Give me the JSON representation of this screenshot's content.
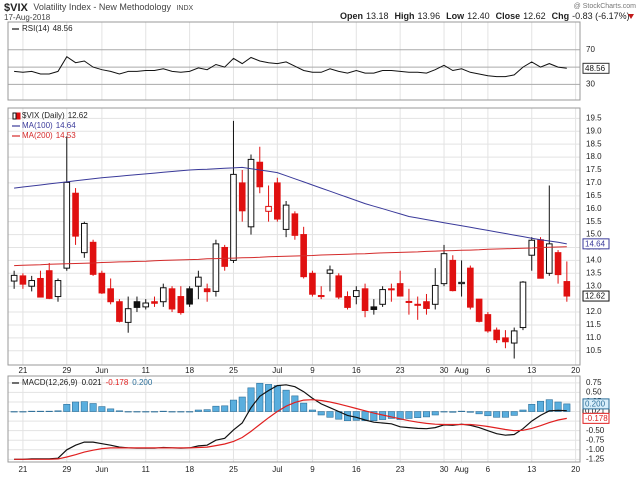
{
  "header": {
    "symbol": "$VIX",
    "name": "Volatility Index - New Methodology",
    "exchange": "INDX",
    "date": "17-Aug-2018",
    "source": "@ StockCharts.com",
    "quote": [
      {
        "label": "Open",
        "value": "13.18"
      },
      {
        "label": "High",
        "value": "13.96"
      },
      {
        "label": "Low",
        "value": "12.40"
      },
      {
        "label": "Close",
        "value": "12.62"
      },
      {
        "label": "Chg",
        "value": "-0.83 (-6.17%)"
      }
    ]
  },
  "x_axis": {
    "xlim": [
      -0.7,
      64.5
    ],
    "xticks": [
      {
        "value": 1,
        "label": "21"
      },
      {
        "value": 6,
        "label": "29"
      },
      {
        "value": 10,
        "label": "Jun"
      },
      {
        "value": 15,
        "label": "11"
      },
      {
        "value": 20,
        "label": "18"
      },
      {
        "value": 25,
        "label": "25"
      },
      {
        "value": 30,
        "label": "Jul"
      },
      {
        "value": 34,
        "label": "9"
      },
      {
        "value": 39,
        "label": "16"
      },
      {
        "value": 44,
        "label": "23"
      },
      {
        "value": 49,
        "label": "30"
      },
      {
        "value": 51,
        "label": "Aug"
      },
      {
        "value": 54,
        "label": "6"
      },
      {
        "value": 59,
        "label": "13"
      },
      {
        "value": 64,
        "label": "20"
      }
    ],
    "grid": true
  },
  "chart_data": [
    {
      "type": "line",
      "ylim": [
        12,
        102
      ],
      "yticks": [
        30,
        50,
        70
      ],
      "grid": true,
      "series": [
        {
          "name": "RSI(14)",
          "color": "#111111",
          "last_value_box": true,
          "values": [
            45,
            44,
            45,
            42,
            42,
            45,
            62,
            55,
            57,
            50,
            47,
            45,
            42,
            45,
            45,
            46,
            46,
            48,
            45,
            44,
            45,
            49,
            47,
            53,
            50,
            60,
            54,
            61,
            57,
            55,
            54,
            56,
            51,
            46,
            44,
            44,
            48,
            45,
            43,
            46,
            43,
            43,
            46,
            46,
            45,
            44,
            44,
            43,
            47,
            52,
            46,
            48,
            44,
            42,
            40,
            39,
            39,
            41,
            50,
            56,
            50,
            54,
            50,
            48.56
          ]
        }
      ]
    },
    {
      "type": "candlestick",
      "name": "$VIX (Daily)",
      "up_color": "#111111",
      "down_color": "#e01010",
      "ylim": [
        9.95,
        19.9
      ],
      "yticks": [
        10.5,
        {
          "value": 11,
          "label": "11.0"
        },
        11.5,
        {
          "value": 12,
          "label": "12.0"
        },
        12.5,
        {
          "value": 13,
          "label": "13.0"
        },
        13.5,
        {
          "value": 14,
          "label": "14.0"
        },
        14.5,
        {
          "value": 15,
          "label": "15.0"
        },
        15.5,
        {
          "value": 16,
          "label": "16.0"
        },
        16.5,
        {
          "value": 17,
          "label": "17.0"
        },
        17.5,
        {
          "value": 18,
          "label": "18.0"
        },
        18.5,
        {
          "value": 19,
          "label": "19.0"
        },
        19.5
      ],
      "grid": true,
      "last_value_box": true,
      "open": [
        13.2,
        13.4,
        13.0,
        13.3,
        13.6,
        12.6,
        13.7,
        16.6,
        14.3,
        14.7,
        13.5,
        12.9,
        12.4,
        11.6,
        12.4,
        12.2,
        12.4,
        12.4,
        12.9,
        12.6,
        12.9,
        13.0,
        12.9,
        12.8,
        14.5,
        14.0,
        17.0,
        15.3,
        17.8,
        15.9,
        17.0,
        15.2,
        15.8,
        15.0,
        13.5,
        12.6,
        13.5,
        13.4,
        12.6,
        12.6,
        12.9,
        12.2,
        12.3,
        12.9,
        13.1,
        12.4,
        12.3,
        12.4,
        12.3,
        13.1,
        14.0,
        13.1,
        13.7,
        12.5,
        11.9,
        11.3,
        11.0,
        10.8,
        11.4,
        14.2,
        14.8,
        13.5,
        14.3,
        13.18
      ],
      "high": [
        13.6,
        13.5,
        13.4,
        13.6,
        13.9,
        13.3,
        18.8,
        16.8,
        15.5,
        14.8,
        13.6,
        13.3,
        12.5,
        12.6,
        12.6,
        12.5,
        12.6,
        13.1,
        13.0,
        13.0,
        13.0,
        13.6,
        13.1,
        14.8,
        14.6,
        19.4,
        17.5,
        18.1,
        18.4,
        16.9,
        17.2,
        16.3,
        15.9,
        15.3,
        13.6,
        13.0,
        13.8,
        13.5,
        12.8,
        13.0,
        13.1,
        12.5,
        13.0,
        13.1,
        13.6,
        12.9,
        12.6,
        12.7,
        13.7,
        14.6,
        14.2,
        14.0,
        13.8,
        12.5,
        12.0,
        11.4,
        11.3,
        11.4,
        13.2,
        14.9,
        14.9,
        16.9,
        14.4,
        13.96
      ],
      "low": [
        12.9,
        12.9,
        12.8,
        12.6,
        12.5,
        12.4,
        13.6,
        14.6,
        14.1,
        13.4,
        12.7,
        12.3,
        11.6,
        11.2,
        12.0,
        12.1,
        12.2,
        12.2,
        12.0,
        11.9,
        12.2,
        12.5,
        12.4,
        12.6,
        13.6,
        13.9,
        15.5,
        15.0,
        16.6,
        15.5,
        15.5,
        14.9,
        14.8,
        13.3,
        12.6,
        12.5,
        12.8,
        12.5,
        12.1,
        12.3,
        11.8,
        11.9,
        12.2,
        12.4,
        12.6,
        11.9,
        11.7,
        11.9,
        12.1,
        13.0,
        12.8,
        12.6,
        12.1,
        11.6,
        11.2,
        10.8,
        10.6,
        10.2,
        11.3,
        13.6,
        13.3,
        13.4,
        13.1,
        12.4
      ],
      "close": [
        13.42,
        13.08,
        13.22,
        12.58,
        12.53,
        13.22,
        17.02,
        14.94,
        15.43,
        13.46,
        12.74,
        12.4,
        11.64,
        12.13,
        12.18,
        12.35,
        12.34,
        12.94,
        12.12,
        11.98,
        12.31,
        13.35,
        12.79,
        14.64,
        13.77,
        17.33,
        15.92,
        17.91,
        16.85,
        16.09,
        15.6,
        16.14,
        14.97,
        13.37,
        12.69,
        12.64,
        13.63,
        12.58,
        12.18,
        12.83,
        12.06,
        12.1,
        12.87,
        12.86,
        12.62,
        12.41,
        12.29,
        12.14,
        13.03,
        14.26,
        12.83,
        13.15,
        12.19,
        11.64,
        11.27,
        10.93,
        10.85,
        11.27,
        13.16,
        14.78,
        13.31,
        14.64,
        13.45,
        12.62
      ],
      "series": [
        {
          "name": "MA(100)",
          "color": "#3a3a9a",
          "last_value_box": true,
          "values": [
            16.8,
            16.84,
            16.88,
            16.92,
            16.96,
            17.0,
            17.04,
            17.08,
            17.12,
            17.16,
            17.2,
            17.23,
            17.26,
            17.29,
            17.32,
            17.35,
            17.38,
            17.41,
            17.44,
            17.47,
            17.5,
            17.52,
            17.53,
            17.55,
            17.57,
            17.58,
            17.6,
            17.55,
            17.5,
            17.45,
            17.4,
            17.28,
            17.16,
            17.04,
            16.92,
            16.8,
            16.68,
            16.56,
            16.44,
            16.32,
            16.2,
            16.1,
            16.0,
            15.9,
            15.8,
            15.7,
            15.64,
            15.58,
            15.52,
            15.46,
            15.4,
            15.34,
            15.28,
            15.22,
            15.16,
            15.1,
            15.04,
            14.98,
            14.92,
            14.86,
            14.8,
            14.75,
            14.7,
            14.64
          ]
        },
        {
          "name": "MA(200)",
          "color": "#d42a2a",
          "last_value_box": false,
          "values": [
            13.8,
            13.81,
            13.82,
            13.83,
            13.85,
            13.86,
            13.87,
            13.88,
            13.89,
            13.9,
            13.92,
            13.93,
            13.94,
            13.95,
            13.96,
            13.97,
            13.99,
            14.0,
            14.01,
            14.02,
            14.03,
            14.04,
            14.06,
            14.07,
            14.08,
            14.09,
            14.1,
            14.11,
            14.12,
            14.14,
            14.15,
            14.16,
            14.17,
            14.18,
            14.19,
            14.21,
            14.22,
            14.23,
            14.24,
            14.25,
            14.26,
            14.28,
            14.29,
            14.3,
            14.31,
            14.32,
            14.33,
            14.35,
            14.36,
            14.37,
            14.38,
            14.39,
            14.4,
            14.41,
            14.43,
            14.44,
            14.45,
            14.46,
            14.47,
            14.48,
            14.5,
            14.51,
            14.52,
            14.53
          ]
        }
      ]
    },
    {
      "type": "macd",
      "name": "MACD(12,26,9)",
      "ylim": [
        -1.32,
        0.93
      ],
      "yticks": [
        {
          "value": 0.75,
          "label": "0.75"
        },
        {
          "value": 0.5,
          "label": "0.50"
        },
        {
          "value": 0.25,
          "label": "0.25"
        },
        {
          "value": 0,
          "label": "0.00"
        },
        {
          "value": -0.25,
          "label": "-0.25"
        },
        {
          "value": -0.5,
          "label": "-0.50"
        },
        {
          "value": -0.75,
          "label": "-0.75"
        },
        {
          "value": -1,
          "label": "-1.00"
        },
        {
          "value": -1.25,
          "label": "-1.25"
        }
      ],
      "grid": true,
      "series": [
        {
          "name": "MACD",
          "color": "#111111",
          "kind": "line",
          "last_value_box": true,
          "values": [
            -1.25,
            -1.25,
            -1.24,
            -1.24,
            -1.24,
            -1.22,
            -1.0,
            -0.88,
            -0.8,
            -0.8,
            -0.84,
            -0.88,
            -0.93,
            -0.95,
            -0.96,
            -0.96,
            -0.96,
            -0.94,
            -0.95,
            -0.96,
            -0.95,
            -0.9,
            -0.88,
            -0.75,
            -0.7,
            -0.48,
            -0.3,
            0.1,
            0.4,
            0.55,
            0.68,
            0.7,
            0.65,
            0.52,
            0.35,
            0.2,
            0.1,
            0.0,
            -0.1,
            -0.15,
            -0.22,
            -0.28,
            -0.3,
            -0.32,
            -0.4,
            -0.42,
            -0.44,
            -0.45,
            -0.42,
            -0.35,
            -0.36,
            -0.33,
            -0.36,
            -0.42,
            -0.5,
            -0.58,
            -0.62,
            -0.6,
            -0.45,
            -0.25,
            -0.1,
            0.02,
            0.03,
            0.021
          ]
        },
        {
          "name": "Signal",
          "color": "#e02020",
          "kind": "line",
          "last_value_box": true,
          "values": [
            -1.25,
            -1.25,
            -1.25,
            -1.25,
            -1.25,
            -1.24,
            -1.19,
            -1.13,
            -1.06,
            -1.01,
            -0.97,
            -0.95,
            -0.95,
            -0.95,
            -0.95,
            -0.95,
            -0.95,
            -0.95,
            -0.95,
            -0.95,
            -0.95,
            -0.94,
            -0.93,
            -0.89,
            -0.85,
            -0.78,
            -0.68,
            -0.52,
            -0.34,
            -0.16,
            0.0,
            0.14,
            0.24,
            0.3,
            0.31,
            0.29,
            0.25,
            0.2,
            0.14,
            0.08,
            0.02,
            -0.04,
            -0.09,
            -0.14,
            -0.19,
            -0.24,
            -0.28,
            -0.31,
            -0.33,
            -0.34,
            -0.34,
            -0.34,
            -0.34,
            -0.36,
            -0.39,
            -0.43,
            -0.47,
            -0.5,
            -0.49,
            -0.44,
            -0.37,
            -0.29,
            -0.22,
            -0.178
          ]
        },
        {
          "name": "Histogram",
          "color": "#5aaede",
          "kind": "bar",
          "last_value_box": true,
          "values": [
            0,
            0,
            0.01,
            0.01,
            0.01,
            0.02,
            0.19,
            0.25,
            0.26,
            0.21,
            0.13,
            0.07,
            0.02,
            0,
            -0.01,
            -0.01,
            -0.01,
            0.01,
            0,
            -0.01,
            0,
            0.04,
            0.05,
            0.14,
            0.15,
            0.3,
            0.38,
            0.62,
            0.74,
            0.71,
            0.68,
            0.56,
            0.41,
            0.22,
            0.04,
            -0.09,
            -0.15,
            -0.2,
            -0.24,
            -0.23,
            -0.24,
            -0.24,
            -0.21,
            -0.18,
            -0.21,
            -0.18,
            -0.16,
            -0.14,
            -0.09,
            -0.01,
            -0.02,
            0.01,
            -0.02,
            -0.06,
            -0.11,
            -0.15,
            -0.15,
            -0.1,
            0.04,
            0.19,
            0.27,
            0.31,
            0.25,
            0.2
          ],
          "value_labels": [
            null,
            null,
            null,
            null,
            null,
            null,
            null,
            null,
            null,
            null,
            null,
            null,
            null,
            null,
            null,
            null,
            null,
            null,
            null,
            null,
            null,
            null,
            null,
            null,
            null,
            null,
            null,
            null,
            null,
            null,
            null,
            null,
            null,
            null,
            null,
            null,
            null,
            null,
            null,
            null,
            null,
            null,
            null,
            null,
            null,
            null,
            null,
            null,
            null,
            null,
            null,
            null,
            null,
            null,
            null,
            null,
            null,
            null,
            null,
            null,
            null,
            null,
            null,
            "0.200"
          ]
        }
      ]
    }
  ]
}
